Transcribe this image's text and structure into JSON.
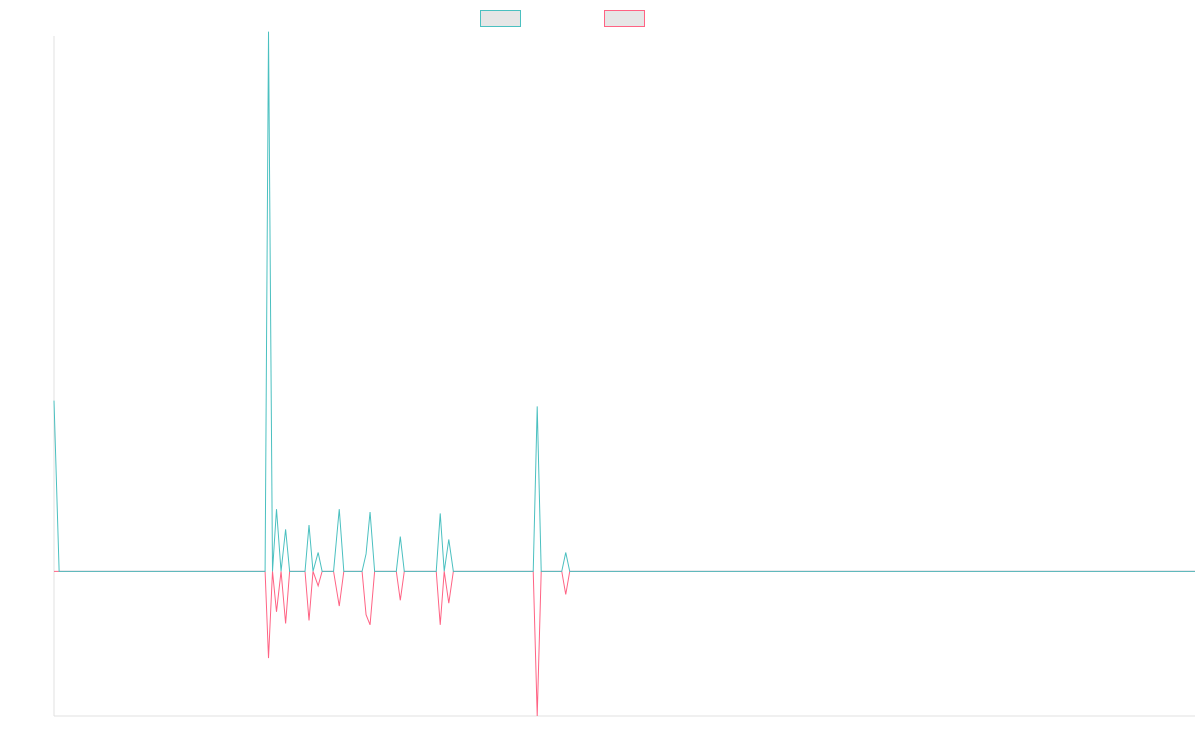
{
  "colors": {
    "series_a": "#4bc0c0",
    "series_b": "#ff6384",
    "legend_fill": "#e6e6e6",
    "axis": "#e0e0e0",
    "background": "#ffffff"
  },
  "legend": {
    "items": [
      {
        "label": "",
        "color": "#4bc0c0"
      },
      {
        "label": "",
        "color": "#ff6384"
      }
    ]
  },
  "chart_data": {
    "type": "line",
    "title": "",
    "xlabel": "",
    "ylabel": "",
    "ylim": [
      -1.0,
      3.7
    ],
    "xlim": [
      0,
      200
    ],
    "grid": false,
    "legend_position": "top-center",
    "tick_labels_visible": false,
    "series": [
      {
        "color": "#4bc0c0",
        "points": [
          [
            0,
            1.18
          ],
          [
            0.9,
            0
          ],
          [
            37,
            0
          ],
          [
            37.6,
            3.73
          ],
          [
            38.3,
            0
          ],
          [
            39,
            0.43
          ],
          [
            39.8,
            0
          ],
          [
            40.6,
            0.29
          ],
          [
            41.3,
            0
          ],
          [
            44,
            0
          ],
          [
            44.7,
            0.32
          ],
          [
            45.4,
            0
          ],
          [
            46.3,
            0.13
          ],
          [
            47,
            0
          ],
          [
            49,
            0
          ],
          [
            50,
            0.43
          ],
          [
            50.8,
            0
          ],
          [
            54,
            0
          ],
          [
            54.7,
            0.12
          ],
          [
            55.4,
            0.41
          ],
          [
            56.2,
            0
          ],
          [
            60,
            0
          ],
          [
            60.7,
            0.24
          ],
          [
            61.4,
            0
          ],
          [
            67,
            0
          ],
          [
            67.7,
            0.4
          ],
          [
            68.4,
            0
          ],
          [
            69.2,
            0.22
          ],
          [
            70,
            0
          ],
          [
            84,
            0
          ],
          [
            84.7,
            1.14
          ],
          [
            85.4,
            0
          ],
          [
            89,
            0
          ],
          [
            89.7,
            0.13
          ],
          [
            90.4,
            0
          ],
          [
            200,
            0
          ]
        ]
      },
      {
        "color": "#ff6384",
        "points": [
          [
            0,
            0
          ],
          [
            37,
            0
          ],
          [
            37.6,
            -0.6
          ],
          [
            38.3,
            0
          ],
          [
            39,
            -0.28
          ],
          [
            39.8,
            0
          ],
          [
            40.6,
            -0.36
          ],
          [
            41.3,
            0
          ],
          [
            44,
            0
          ],
          [
            44.7,
            -0.34
          ],
          [
            45.4,
            0
          ],
          [
            46.3,
            -0.1
          ],
          [
            47,
            0
          ],
          [
            49,
            0
          ],
          [
            50,
            -0.24
          ],
          [
            50.8,
            0
          ],
          [
            54,
            0
          ],
          [
            54.7,
            -0.3
          ],
          [
            55.4,
            -0.37
          ],
          [
            56.2,
            0
          ],
          [
            60,
            0
          ],
          [
            60.7,
            -0.2
          ],
          [
            61.4,
            0
          ],
          [
            67,
            0
          ],
          [
            67.7,
            -0.37
          ],
          [
            68.4,
            0
          ],
          [
            69.2,
            -0.22
          ],
          [
            70,
            0
          ],
          [
            84,
            0
          ],
          [
            84.7,
            -1.0
          ],
          [
            85.4,
            0
          ],
          [
            89,
            0
          ],
          [
            89.7,
            -0.16
          ],
          [
            90.4,
            0
          ],
          [
            200,
            0
          ]
        ]
      }
    ]
  }
}
